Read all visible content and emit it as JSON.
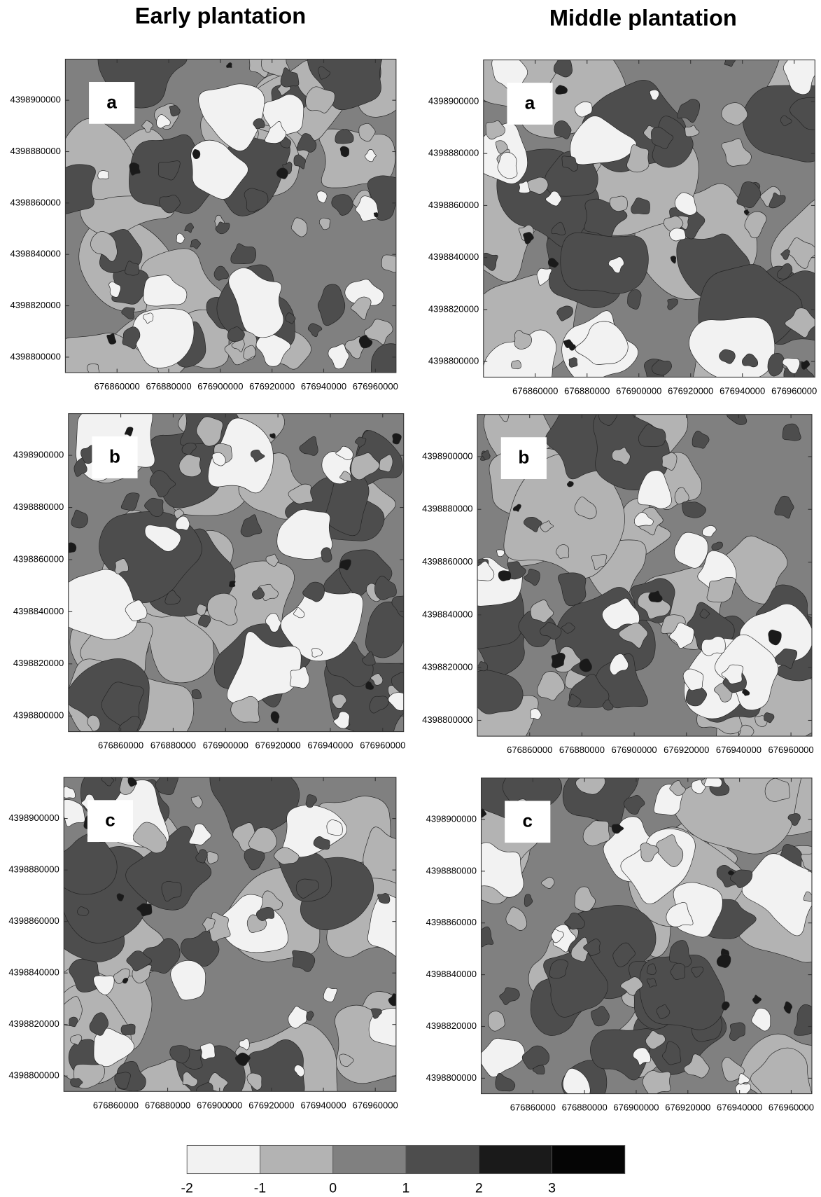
{
  "columns": [
    "Early plantation",
    "Middle plantation"
  ],
  "chart_data": [
    {
      "type": "contour",
      "label": "a",
      "xlim": [
        676840000,
        676968000
      ],
      "ylim": [
        4398794000,
        4398916000
      ],
      "xticks": [
        676860000,
        676880000,
        676900000,
        676920000,
        676940000,
        676960000
      ],
      "yticks": [
        4398800000,
        4398820000,
        4398840000,
        4398860000,
        4398880000,
        4398900000
      ]
    },
    {
      "type": "contour",
      "label": "a",
      "xlim": [
        676840000,
        676968000
      ],
      "ylim": [
        4398794000,
        4398916000
      ],
      "xticks": [
        676860000,
        676880000,
        676900000,
        676920000,
        676940000,
        676960000
      ],
      "yticks": [
        4398800000,
        4398820000,
        4398840000,
        4398860000,
        4398880000,
        4398900000
      ]
    },
    {
      "type": "contour",
      "label": "b",
      "xlim": [
        676840000,
        676968000
      ],
      "ylim": [
        4398794000,
        4398916000
      ],
      "xticks": [
        676860000,
        676880000,
        676900000,
        676920000,
        676940000,
        676960000
      ],
      "yticks": [
        4398800000,
        4398820000,
        4398840000,
        4398860000,
        4398880000,
        4398900000
      ]
    },
    {
      "type": "contour",
      "label": "b",
      "xlim": [
        676840000,
        676968000
      ],
      "ylim": [
        4398794000,
        4398916000
      ],
      "xticks": [
        676860000,
        676880000,
        676900000,
        676920000,
        676940000,
        676960000
      ],
      "yticks": [
        4398800000,
        4398820000,
        4398840000,
        4398860000,
        4398880000,
        4398900000
      ]
    },
    {
      "type": "contour",
      "label": "c",
      "xlim": [
        676840000,
        676968000
      ],
      "ylim": [
        4398794000,
        4398916000
      ],
      "xticks": [
        676860000,
        676880000,
        676900000,
        676920000,
        676940000,
        676960000
      ],
      "yticks": [
        4398800000,
        4398820000,
        4398840000,
        4398860000,
        4398880000,
        4398900000
      ]
    },
    {
      "type": "contour",
      "label": "c",
      "xlim": [
        676840000,
        676968000
      ],
      "ylim": [
        4398794000,
        4398916000
      ],
      "xticks": [
        676860000,
        676880000,
        676900000,
        676920000,
        676940000,
        676960000
      ],
      "yticks": [
        4398800000,
        4398820000,
        4398840000,
        4398860000,
        4398880000,
        4398900000
      ]
    }
  ],
  "legend": {
    "range": [
      -2,
      4
    ],
    "ticks": [
      -2,
      -1,
      0,
      1,
      2,
      3
    ],
    "colors": [
      "#f2f2f2",
      "#b3b3b3",
      "#808080",
      "#4d4d4d",
      "#1a1a1a",
      "#050505"
    ]
  }
}
